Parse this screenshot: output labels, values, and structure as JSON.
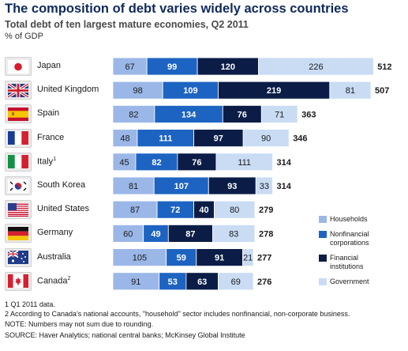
{
  "title": "The composition of debt varies widely across countries",
  "subtitle": "Total debt of ten largest mature economies, Q2 2011",
  "unit_label": "% of GDP",
  "chart_data": {
    "type": "bar",
    "orientation": "horizontal",
    "stacked": true,
    "categories": [
      "Japan",
      "United Kingdom",
      "Spain",
      "France",
      "Italy",
      "South Korea",
      "United States",
      "Germany",
      "Australia",
      "Canada"
    ],
    "category_superscripts": [
      "",
      "",
      "",
      "",
      "1",
      "",
      "",
      "",
      "",
      "2"
    ],
    "series": [
      {
        "name": "Households",
        "color": "#9bb7e8",
        "text_color": "#1a1a1a",
        "values": [
          67,
          98,
          82,
          48,
          45,
          81,
          87,
          60,
          105,
          91
        ]
      },
      {
        "name": "Nonfinancial corporations",
        "color": "#1d64c2",
        "text_color": "#ffffff",
        "values": [
          99,
          109,
          134,
          111,
          82,
          107,
          72,
          49,
          59,
          53
        ]
      },
      {
        "name": "Financial institutions",
        "color": "#0b1d46",
        "text_color": "#ffffff",
        "values": [
          120,
          219,
          76,
          97,
          76,
          93,
          40,
          87,
          91,
          63
        ]
      },
      {
        "name": "Government",
        "color": "#c9dcf4",
        "text_color": "#1a1a1a",
        "values": [
          226,
          81,
          71,
          90,
          111,
          33,
          80,
          83,
          21,
          69
        ]
      }
    ],
    "totals": [
      512,
      507,
      363,
      346,
      314,
      314,
      279,
      278,
      277,
      276
    ],
    "legend_position": "right",
    "legend": [
      {
        "lines": [
          "Households"
        ],
        "color": "#9bb7e8"
      },
      {
        "lines": [
          "Nonfinancial",
          "corporations"
        ],
        "color": "#1d64c2"
      },
      {
        "lines": [
          "Financial",
          "institutions"
        ],
        "color": "#0b1d46"
      },
      {
        "lines": [
          "Government"
        ],
        "color": "#c9dcf4"
      }
    ]
  },
  "flags": [
    "japan-flag-icon",
    "united-kingdom-flag-icon",
    "spain-flag-icon",
    "france-flag-icon",
    "italy-flag-icon",
    "south-korea-flag-icon",
    "united-states-flag-icon",
    "germany-flag-icon",
    "australia-flag-icon",
    "canada-flag-icon"
  ],
  "footnotes": [
    "1  Q1 2011 data.",
    "2  According to Canada's national accounts, \"household\" sector includes nonfinancial, non-corporate business.",
    "NOTE: Numbers may not sum due to rounding.",
    "SOURCE: Haver Analytics; national central banks; McKinsey Global Institute"
  ]
}
